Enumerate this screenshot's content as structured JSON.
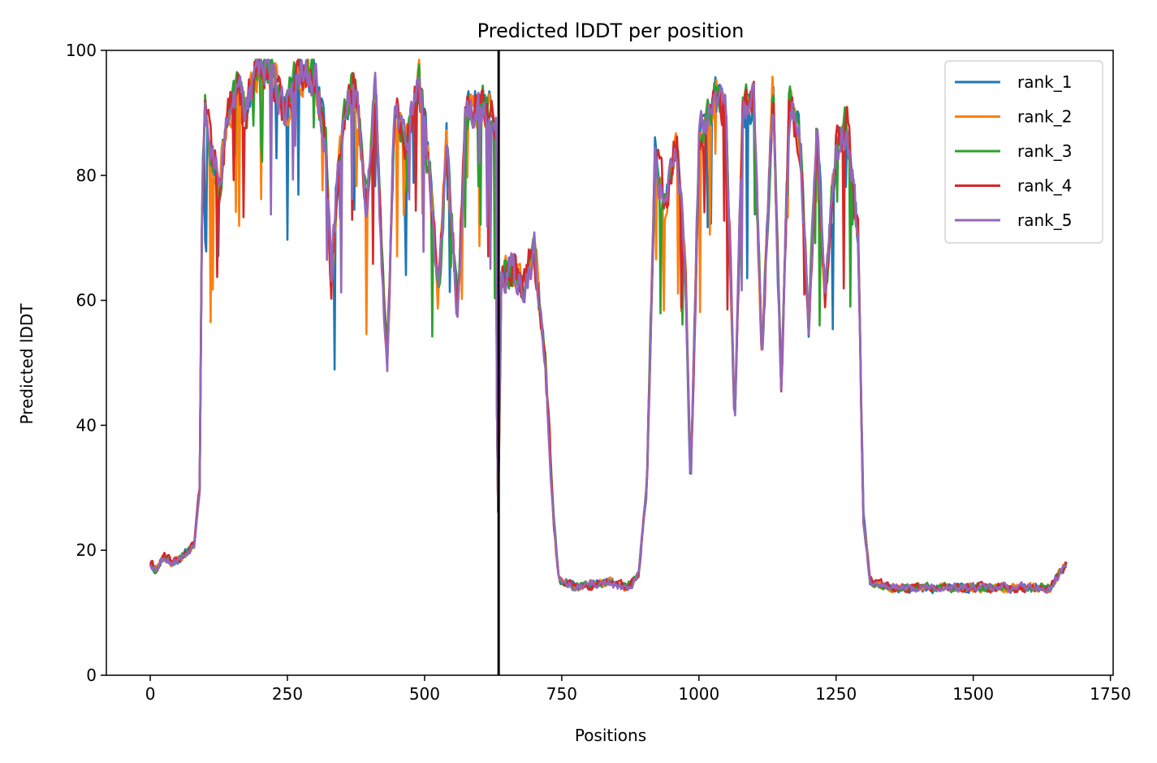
{
  "chart_data": {
    "type": "line",
    "title": "Predicted lDDT per position",
    "xlabel": "Positions",
    "ylabel": "Predicted lDDT",
    "xlim": [
      -80,
      1755
    ],
    "ylim": [
      0,
      100
    ],
    "xticks": [
      0,
      250,
      500,
      750,
      1000,
      1250,
      1500,
      1750
    ],
    "yticks": [
      0,
      20,
      40,
      60,
      80,
      100
    ],
    "chain_break_x": 635,
    "legend_position": "top-right",
    "grid": false,
    "series": [
      {
        "name": "rank_1",
        "color": "#1f77b4",
        "seed": 11,
        "spike": [
          0.8,
          0.12
        ]
      },
      {
        "name": "rank_2",
        "color": "#ff7f0e",
        "seed": 23,
        "spike": [
          0.62,
          0.1
        ]
      },
      {
        "name": "rank_3",
        "color": "#2ca02c",
        "seed": 37,
        "spike": [
          0.55,
          0.11
        ]
      },
      {
        "name": "rank_4",
        "color": "#d62728",
        "seed": 41,
        "spike": [
          0.45,
          0.09
        ]
      },
      {
        "name": "rank_5",
        "color": "#9467bd",
        "seed": 53,
        "spike": [
          0.4,
          0.1
        ]
      }
    ],
    "profile": [
      [
        0,
        18
      ],
      [
        10,
        17
      ],
      [
        25,
        19
      ],
      [
        40,
        18
      ],
      [
        60,
        19
      ],
      [
        80,
        21
      ],
      [
        90,
        30
      ],
      [
        95,
        80
      ],
      [
        100,
        92
      ],
      [
        110,
        85
      ],
      [
        125,
        78
      ],
      [
        140,
        90
      ],
      [
        160,
        94
      ],
      [
        175,
        90
      ],
      [
        190,
        97
      ],
      [
        220,
        97
      ],
      [
        245,
        90
      ],
      [
        270,
        97
      ],
      [
        300,
        96
      ],
      [
        320,
        85
      ],
      [
        330,
        63
      ],
      [
        345,
        85
      ],
      [
        370,
        95
      ],
      [
        385,
        85
      ],
      [
        395,
        75
      ],
      [
        410,
        95
      ],
      [
        425,
        60
      ],
      [
        432,
        50
      ],
      [
        445,
        90
      ],
      [
        465,
        86
      ],
      [
        490,
        95
      ],
      [
        510,
        80
      ],
      [
        525,
        60
      ],
      [
        540,
        85
      ],
      [
        560,
        58
      ],
      [
        575,
        90
      ],
      [
        600,
        92
      ],
      [
        630,
        88
      ],
      [
        633,
        20
      ],
      [
        640,
        63
      ],
      [
        660,
        65
      ],
      [
        680,
        62
      ],
      [
        700,
        68
      ],
      [
        720,
        50
      ],
      [
        735,
        25
      ],
      [
        745,
        15
      ],
      [
        780,
        14
      ],
      [
        830,
        15
      ],
      [
        870,
        14
      ],
      [
        890,
        16
      ],
      [
        905,
        30
      ],
      [
        920,
        83
      ],
      [
        940,
        75
      ],
      [
        960,
        86
      ],
      [
        975,
        65
      ],
      [
        985,
        30
      ],
      [
        1000,
        85
      ],
      [
        1030,
        93
      ],
      [
        1050,
        90
      ],
      [
        1065,
        40
      ],
      [
        1080,
        90
      ],
      [
        1100,
        92
      ],
      [
        1115,
        50
      ],
      [
        1135,
        95
      ],
      [
        1150,
        45
      ],
      [
        1165,
        92
      ],
      [
        1185,
        85
      ],
      [
        1200,
        55
      ],
      [
        1215,
        88
      ],
      [
        1230,
        60
      ],
      [
        1250,
        85
      ],
      [
        1270,
        88
      ],
      [
        1290,
        70
      ],
      [
        1300,
        25
      ],
      [
        1312,
        15
      ],
      [
        1350,
        14
      ],
      [
        1450,
        14
      ],
      [
        1550,
        14
      ],
      [
        1640,
        14
      ],
      [
        1670,
        18
      ]
    ]
  }
}
